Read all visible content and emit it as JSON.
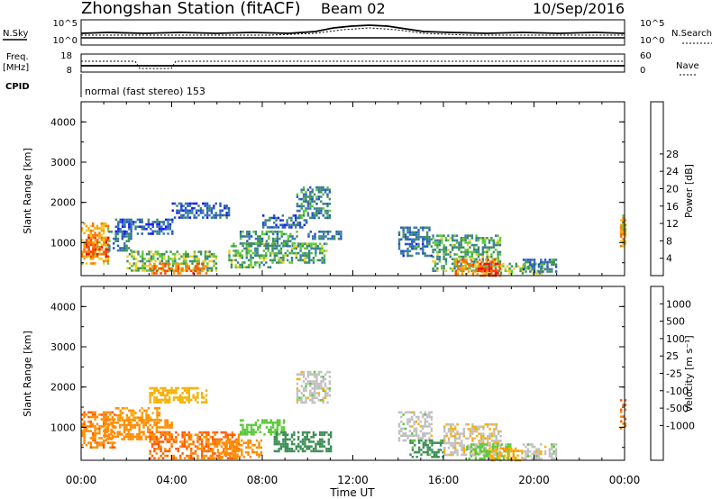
{
  "header": {
    "station": "Zhongshan Station (fitACF)",
    "beam": "Beam 02",
    "date": "10/Sep/2016"
  },
  "params": {
    "nsky_label": "N.Sky",
    "nsky_ticks": [
      "10^5",
      "10^0"
    ],
    "nsearch_label": "N.Search",
    "nsearch_ticks": [
      "10^5",
      "10^0"
    ],
    "freq_label": "Freq.",
    "freq_unit": "[MHz]",
    "freq_ticks": [
      "18",
      "8"
    ],
    "nave_label": "Nave",
    "nave_ticks": [
      "60",
      "0"
    ],
    "cpid_label": "CPID",
    "cpid_text": "normal (fast stereo) 153"
  },
  "chart_data": [
    {
      "type": "heatmap",
      "name": "power",
      "ylabel": "Slant Range [km]",
      "yticks": [
        "1000",
        "2000",
        "3000",
        "4000"
      ],
      "ylim": [
        180,
        4500
      ],
      "xlim": [
        0,
        24
      ],
      "colorbar": {
        "label": "Power [dB]",
        "ticks": [
          "4",
          "8",
          "12",
          "16",
          "20",
          "24",
          "28"
        ],
        "colors": [
          "#1818ff",
          "#2255c8",
          "#3a7aa8",
          "#3f8f58",
          "#5cc83a",
          "#e8d028",
          "#f5a200",
          "#ff7000",
          "#ff4000",
          "#ee1010"
        ]
      },
      "regions": [
        {
          "t": [
            0.0,
            1.2
          ],
          "r": [
            500,
            1500
          ],
          "v": 20
        },
        {
          "t": [
            0.2,
            1.2
          ],
          "r": [
            650,
            1150
          ],
          "v": 26
        },
        {
          "t": [
            1.2,
            2.2
          ],
          "r": [
            800,
            1300
          ],
          "v": 8
        },
        {
          "t": [
            1.5,
            4.0
          ],
          "r": [
            1200,
            1600
          ],
          "v": 6
        },
        {
          "t": [
            2.0,
            6.0
          ],
          "r": [
            300,
            800
          ],
          "v": 14
        },
        {
          "t": [
            3.0,
            5.5
          ],
          "r": [
            250,
            500
          ],
          "v": 24
        },
        {
          "t": [
            4.0,
            6.5
          ],
          "r": [
            1600,
            2000
          ],
          "v": 6
        },
        {
          "t": [
            6.5,
            8.5
          ],
          "r": [
            400,
            1000
          ],
          "v": 12
        },
        {
          "t": [
            7.0,
            9.5
          ],
          "r": [
            900,
            1300
          ],
          "v": 10
        },
        {
          "t": [
            8.0,
            10.0
          ],
          "r": [
            1400,
            1700
          ],
          "v": 6
        },
        {
          "t": [
            8.5,
            10.8
          ],
          "r": [
            500,
            1000
          ],
          "v": 12
        },
        {
          "t": [
            9.5,
            11.0
          ],
          "r": [
            1600,
            2400
          ],
          "v": 9
        },
        {
          "t": [
            10.0,
            11.5
          ],
          "r": [
            1100,
            1300
          ],
          "v": 7
        },
        {
          "t": [
            14.0,
            15.5
          ],
          "r": [
            700,
            1400
          ],
          "v": 8
        },
        {
          "t": [
            15.5,
            18.5
          ],
          "r": [
            300,
            1200
          ],
          "v": 12
        },
        {
          "t": [
            16.5,
            18.5
          ],
          "r": [
            250,
            600
          ],
          "v": 22
        },
        {
          "t": [
            17.5,
            18.5
          ],
          "r": [
            200,
            500
          ],
          "v": 28
        },
        {
          "t": [
            18.5,
            20.5
          ],
          "r": [
            250,
            500
          ],
          "v": 14
        },
        {
          "t": [
            19.5,
            21.0
          ],
          "r": [
            300,
            600
          ],
          "v": 8
        },
        {
          "t": [
            23.8,
            24.0
          ],
          "r": [
            900,
            1700
          ],
          "v": 20
        }
      ]
    },
    {
      "type": "heatmap",
      "name": "velocity",
      "ylabel": "Slant Range [km]",
      "yticks": [
        "1000",
        "2000",
        "3000",
        "4000"
      ],
      "ylim": [
        180,
        4500
      ],
      "xlim": [
        0,
        24
      ],
      "xticks": [
        "00:00",
        "04:00",
        "08:00",
        "12:00",
        "16:00",
        "20:00",
        "00:00"
      ],
      "xlabel": "Time UT",
      "colorbar": {
        "label": "Velocity [m s⁻¹]",
        "ticks": [
          "1000",
          "500",
          "100",
          "25",
          "-25",
          "-100",
          "-500",
          "-1000"
        ],
        "colors": [
          "#1818ee",
          "#2266c8",
          "#3f8f58",
          "#5cc83a",
          "#c0c0c0",
          "#c0c0c0",
          "#f5b000",
          "#ff8c00",
          "#ff5a00",
          "#ee1010"
        ]
      },
      "regions": [
        {
          "t": [
            0.0,
            1.5
          ],
          "r": [
            500,
            1400
          ],
          "v": -400
        },
        {
          "t": [
            1.0,
            4.0
          ],
          "r": [
            700,
            1200
          ],
          "v": -300
        },
        {
          "t": [
            1.5,
            3.5
          ],
          "r": [
            1200,
            1500
          ],
          "v": -120
        },
        {
          "t": [
            3.0,
            5.5
          ],
          "r": [
            1600,
            2000
          ],
          "v": -60
        },
        {
          "t": [
            3.0,
            7.0
          ],
          "r": [
            250,
            900
          ],
          "v": -500
        },
        {
          "t": [
            6.0,
            8.0
          ],
          "r": [
            250,
            700
          ],
          "v": -200
        },
        {
          "t": [
            7.0,
            9.0
          ],
          "r": [
            800,
            1200
          ],
          "v": 60
        },
        {
          "t": [
            8.5,
            11.0
          ],
          "r": [
            400,
            900
          ],
          "v": 200
        },
        {
          "t": [
            9.5,
            11.0
          ],
          "r": [
            1600,
            2400
          ],
          "v": 0
        },
        {
          "t": [
            14.0,
            15.5
          ],
          "r": [
            700,
            1400
          ],
          "v": 0
        },
        {
          "t": [
            14.5,
            16.0
          ],
          "r": [
            250,
            700
          ],
          "v": 150
        },
        {
          "t": [
            16.0,
            18.5
          ],
          "r": [
            300,
            1100
          ],
          "v": -15
        },
        {
          "t": [
            17.0,
            19.0
          ],
          "r": [
            250,
            600
          ],
          "v": 40
        },
        {
          "t": [
            18.0,
            19.5
          ],
          "r": [
            200,
            500
          ],
          "v": -80
        },
        {
          "t": [
            19.5,
            21.0
          ],
          "r": [
            250,
            600
          ],
          "v": 0
        },
        {
          "t": [
            23.8,
            24.0
          ],
          "r": [
            900,
            1700
          ],
          "v": -600
        }
      ]
    }
  ]
}
